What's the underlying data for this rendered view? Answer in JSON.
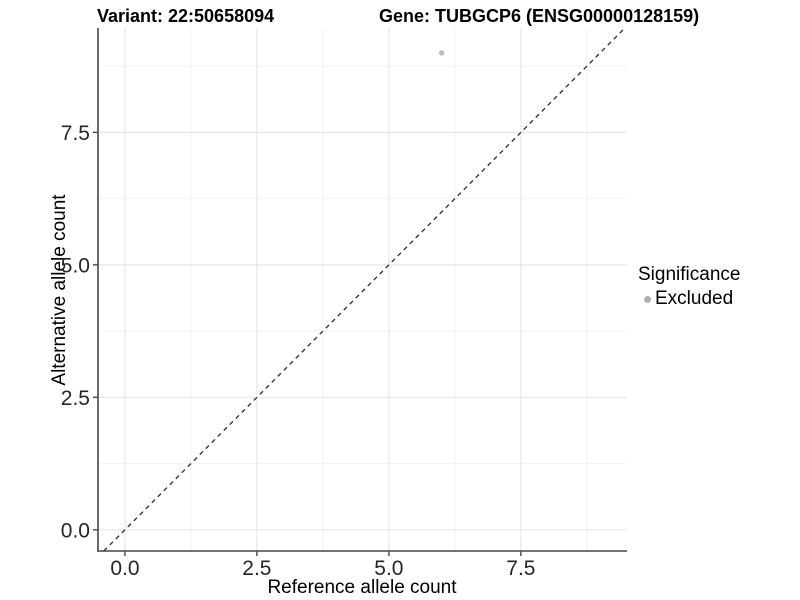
{
  "figure": {
    "background": "#ffffff"
  },
  "chart_data": {
    "type": "scatter",
    "titles": {
      "variant": "Variant: 22:50658094",
      "gene": "Gene: TUBGCP6 (ENSG00000128159)"
    },
    "xlabel": "Reference allele count",
    "ylabel": "Alternative allele count",
    "x_ticks": {
      "values": [
        0,
        2.5,
        5,
        7.5
      ],
      "labels": [
        "0.0",
        "2.5",
        "5.0",
        "7.5"
      ]
    },
    "y_ticks": {
      "values": [
        0,
        2.5,
        5,
        7.5
      ],
      "labels": [
        "0.0",
        "2.5",
        "5.0",
        "7.5"
      ]
    },
    "x_minor_ticks": [
      1.25,
      3.75,
      6.25,
      8.75
    ],
    "y_minor_ticks": [
      1.25,
      3.75,
      6.25,
      8.75
    ],
    "xlim": [
      -0.51,
      9.51
    ],
    "ylim": [
      -0.4,
      9.47
    ],
    "grid": {
      "major": true,
      "minor": true,
      "major_color": "#e7e7e7",
      "minor_color": "#f2f2f2"
    },
    "reference_line": {
      "kind": "identity",
      "style": "dashed",
      "color": "#2a2a2a"
    },
    "axis_color": "#464646",
    "series": [
      {
        "name": "Excluded",
        "marker": "circle",
        "color": "#bdbdbd",
        "points": [
          {
            "x": 6,
            "y": 9
          }
        ]
      }
    ],
    "legend": {
      "title": "Significance",
      "position": "right",
      "entries": [
        {
          "label": "Excluded",
          "marker": "circle",
          "color": "#b0b0b0"
        }
      ]
    }
  }
}
